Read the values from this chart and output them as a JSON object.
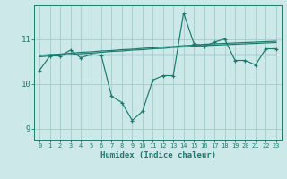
{
  "title": "",
  "xlabel": "Humidex (Indice chaleur)",
  "ylabel": "",
  "bg_color": "#cce8e8",
  "grid_color": "#aacece",
  "line_color": "#1a7a6e",
  "x": [
    0,
    1,
    2,
    3,
    4,
    5,
    6,
    7,
    8,
    9,
    10,
    11,
    12,
    13,
    14,
    15,
    16,
    17,
    18,
    19,
    20,
    21,
    22,
    23
  ],
  "y_main": [
    10.3,
    10.62,
    10.62,
    10.75,
    10.58,
    10.65,
    10.63,
    9.72,
    9.58,
    9.18,
    9.38,
    10.08,
    10.18,
    10.18,
    11.58,
    10.9,
    10.83,
    10.93,
    11.0,
    10.52,
    10.52,
    10.42,
    10.78,
    10.78
  ],
  "y_flat": [
    10.65,
    10.65,
    10.65,
    10.65,
    10.65,
    10.65,
    10.65,
    10.65,
    10.65,
    10.65,
    10.65,
    10.65,
    10.65,
    10.65,
    10.65,
    10.65,
    10.65,
    10.65,
    10.65,
    10.65,
    10.65,
    10.65,
    10.65,
    10.65
  ],
  "y_trend1": [
    10.63,
    10.65,
    10.66,
    10.68,
    10.7,
    10.71,
    10.73,
    10.74,
    10.76,
    10.77,
    10.79,
    10.8,
    10.82,
    10.83,
    10.85,
    10.86,
    10.88,
    10.89,
    10.9,
    10.91,
    10.92,
    10.93,
    10.94,
    10.95
  ],
  "y_trend2": [
    10.6,
    10.62,
    10.63,
    10.65,
    10.67,
    10.68,
    10.7,
    10.72,
    10.73,
    10.75,
    10.76,
    10.78,
    10.79,
    10.81,
    10.82,
    10.84,
    10.85,
    10.86,
    10.87,
    10.88,
    10.89,
    10.9,
    10.91,
    10.92
  ],
  "ylim": [
    8.75,
    11.75
  ],
  "xlim": [
    -0.5,
    23.5
  ],
  "yticks": [
    9,
    10,
    11
  ],
  "xticks": [
    0,
    1,
    2,
    3,
    4,
    5,
    6,
    7,
    8,
    9,
    10,
    11,
    12,
    13,
    14,
    15,
    16,
    17,
    18,
    19,
    20,
    21,
    22,
    23
  ]
}
